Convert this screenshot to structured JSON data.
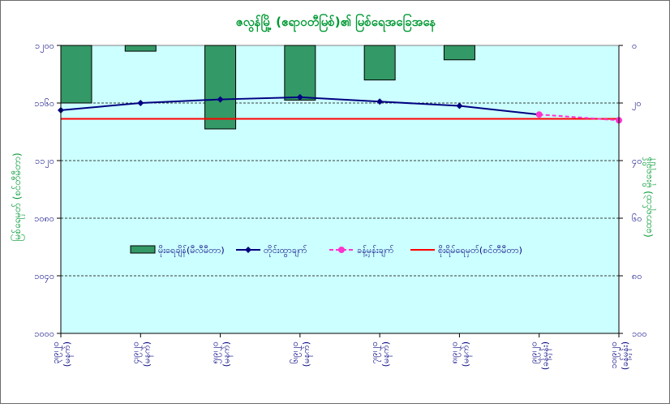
{
  "chart_data": {
    "type": "bar",
    "title": "ဇလွန်မြို့ (ဧရာဝတီမြစ်)၏ မြစ်ရေအခြေအနေ",
    "ylabel": "မြစ်ရေမှတ် (စင်တီမီတာ)",
    "y2label": "(ထောရင်ထဲ) မိုးရေချိန်",
    "ylim": [
      1000,
      1200
    ],
    "y2lim": [
      0,
      100
    ],
    "y_ticks": [
      {
        "value": 1000,
        "label": "၁၀၀၀"
      },
      {
        "value": 1040,
        "label": "၁၀၄၀"
      },
      {
        "value": 1080,
        "label": "၁၀၈၀"
      },
      {
        "value": 1120,
        "label": "၁၁၂၀"
      },
      {
        "value": 1160,
        "label": "၁၁၆၀"
      },
      {
        "value": 1200,
        "label": "၁၂၀၀"
      }
    ],
    "y2_ticks": [
      {
        "value": 0,
        "label": "၀"
      },
      {
        "value": 20,
        "label": "၂၀"
      },
      {
        "value": 40,
        "label": "၄၀"
      },
      {
        "value": 60,
        "label": "၆၀"
      },
      {
        "value": 80,
        "label": "၈၀"
      },
      {
        "value": 100,
        "label": "၁၀၀"
      }
    ],
    "categories": [
      {
        "date": "၃၊၉၊၂၀",
        "note": "(မနက်)"
      },
      {
        "date": "၄၊၉၊၂၀",
        "note": "(မနက်)"
      },
      {
        "date": "၅၊၉၊၂၀",
        "note": "(မနက်)"
      },
      {
        "date": "၆၊၉၊၂၀",
        "note": "(မနက်)"
      },
      {
        "date": "၇၊၉၊၂၀",
        "note": "(မနက်)"
      },
      {
        "date": "၈၊၉၊၂၀",
        "note": "(မနက်)"
      },
      {
        "date": "၉၊၉၊၂၀",
        "note": "(ခန့်မှန်း)"
      },
      {
        "date": "၁၀၊၉၊၂၀",
        "note": "(ခန့်မှန်း)"
      }
    ],
    "grid": true,
    "legend_placement": "center",
    "series": [
      {
        "name": "မိုးရေချိန်(မီလီမီတာ)",
        "kind": "bar",
        "axis": "y2",
        "color": "#339966",
        "values": [
          20,
          2,
          29,
          19,
          12,
          5,
          null,
          null
        ]
      },
      {
        "name": "တိုင်းထွာချက်",
        "kind": "line",
        "axis": "y",
        "color": "#000080",
        "values": [
          1155,
          1160,
          1162.5,
          1164,
          1161,
          1158,
          1152,
          null
        ]
      },
      {
        "name": "ခန့်မှန်းချက်",
        "kind": "line-dashed",
        "axis": "y",
        "color": "#ff33cc",
        "values": [
          null,
          null,
          null,
          null,
          null,
          null,
          1152,
          1148
        ]
      },
      {
        "name": "စိုးရိမ်ရေမှတ်(စင်တီမီတာ)",
        "kind": "hline",
        "axis": "y",
        "color": "#ff0000",
        "value": 1149
      }
    ]
  }
}
